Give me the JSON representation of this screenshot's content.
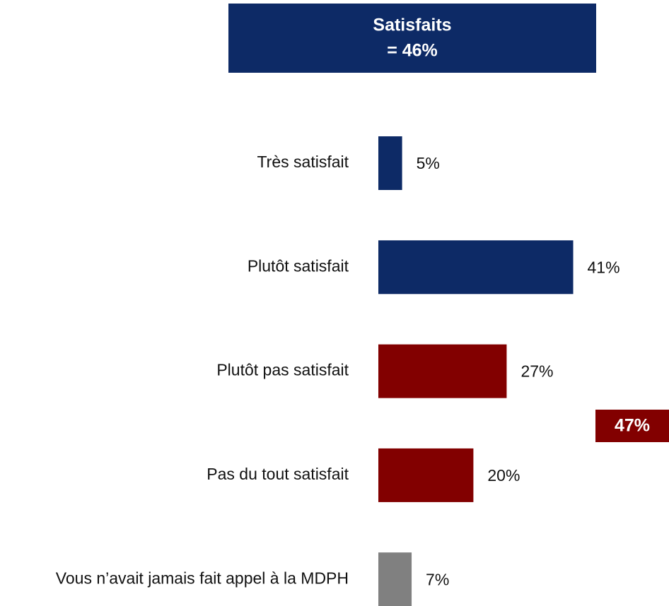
{
  "chart_data": {
    "type": "bar",
    "orientation": "horizontal",
    "categories": [
      "Très satisfait",
      "Plutôt satisfait",
      "Plutôt pas satisfait",
      "Pas du tout satisfait",
      "Vous n’avait jamais fait appel à la MDPH"
    ],
    "values": [
      5,
      41,
      27,
      20,
      7
    ],
    "value_labels": [
      "5%",
      "41%",
      "27%",
      "20%",
      "7%"
    ],
    "colors": [
      "#0d2a66",
      "#0d2a66",
      "#820000",
      "#820000",
      "#808080"
    ],
    "annotations": [
      {
        "lines": [
          "Satisfaits",
          "= 46%"
        ],
        "color": "#0d2a66"
      },
      {
        "lines": [
          "47%"
        ],
        "color": "#820000"
      }
    ]
  }
}
